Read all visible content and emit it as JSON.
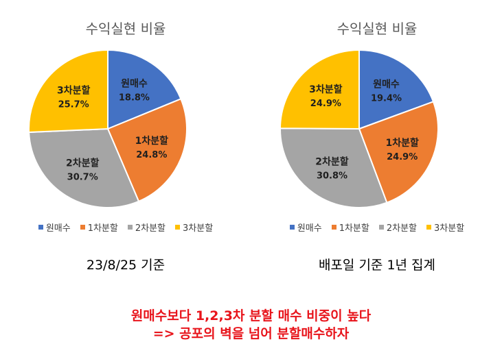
{
  "chart_data": [
    {
      "type": "pie",
      "title": "수익실현 비율",
      "categories": [
        "원매수",
        "1차분할",
        "2차분할",
        "3차분할"
      ],
      "values": [
        18.8,
        24.8,
        30.7,
        25.7
      ],
      "value_labels": [
        "18.8%",
        "24.8%",
        "30.7%",
        "25.7%"
      ],
      "colors": [
        "#4472C4",
        "#ED7D31",
        "#A5A5A5",
        "#FFC000"
      ],
      "legend": "bottom",
      "caption": "23/8/25 기준"
    },
    {
      "type": "pie",
      "title": "수익실현 비율",
      "categories": [
        "원매수",
        "1차분할",
        "2차분할",
        "3차분할"
      ],
      "values": [
        19.4,
        24.9,
        30.8,
        24.9
      ],
      "value_labels": [
        "19.4%",
        "24.9%",
        "30.8%",
        "24.9%"
      ],
      "colors": [
        "#4472C4",
        "#ED7D31",
        "#A5A5A5",
        "#FFC000"
      ],
      "legend": "bottom",
      "caption": "배포일 기준 1년 집계"
    }
  ],
  "conclusion": {
    "line1": "원매수보다 1,2,3차 분할 매수 비중이 높다",
    "line2": "=> 공포의 벽을 넘어 분할매수하자"
  }
}
